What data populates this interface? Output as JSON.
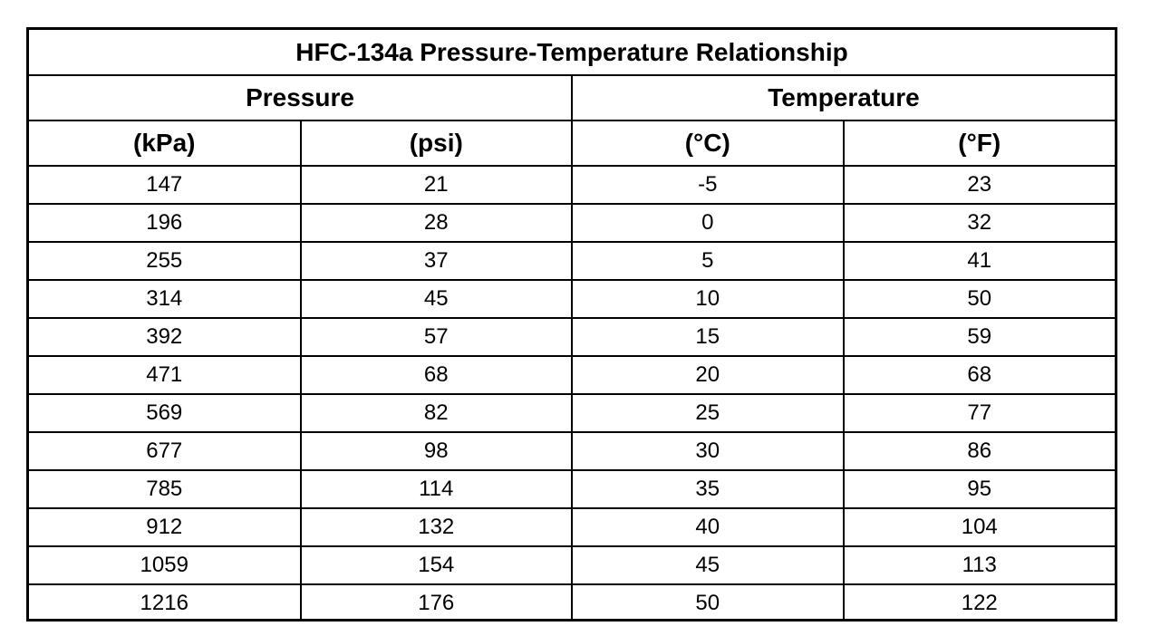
{
  "table": {
    "title": "HFC-134a Pressure-Temperature Relationship",
    "groups": {
      "pressure": "Pressure",
      "temperature": "Temperature"
    },
    "units": [
      "(kPa)",
      "(psi)",
      "(°C)",
      "(°F)"
    ],
    "rows": [
      [
        "147",
        "21",
        "-5",
        "23"
      ],
      [
        "196",
        "28",
        "0",
        "32"
      ],
      [
        "255",
        "37",
        "5",
        "41"
      ],
      [
        "314",
        "45",
        "10",
        "50"
      ],
      [
        "392",
        "57",
        "15",
        "59"
      ],
      [
        "471",
        "68",
        "20",
        "68"
      ],
      [
        "569",
        "82",
        "25",
        "77"
      ],
      [
        "677",
        "98",
        "30",
        "86"
      ],
      [
        "785",
        "114",
        "35",
        "95"
      ],
      [
        "912",
        "132",
        "40",
        "104"
      ],
      [
        "1059",
        "154",
        "45",
        "113"
      ],
      [
        "1216",
        "176",
        "50",
        "122"
      ]
    ]
  }
}
